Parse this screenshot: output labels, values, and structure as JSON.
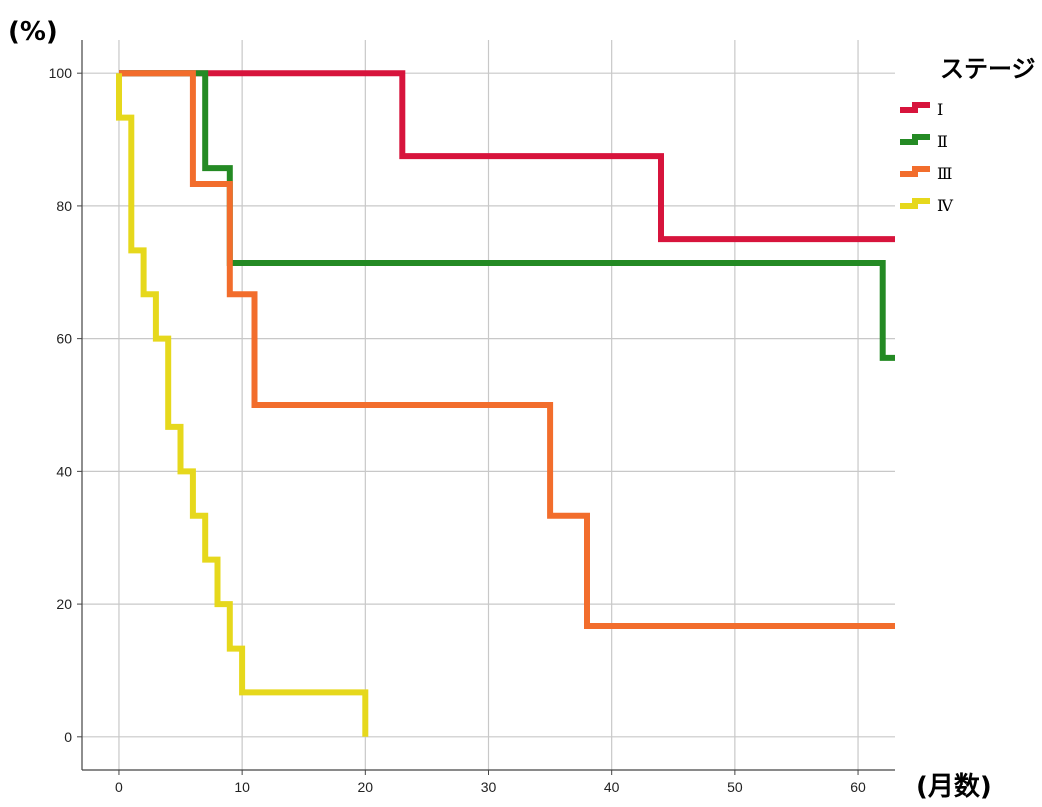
{
  "chart_data": {
    "type": "line",
    "step": true,
    "ylabel": "(%)",
    "xlabel": "(月数)",
    "xlim": [
      -3,
      63
    ],
    "ylim": [
      -5,
      105
    ],
    "x_ticks": [
      0,
      10,
      20,
      30,
      40,
      50,
      60
    ],
    "y_ticks": [
      0,
      20,
      40,
      60,
      80,
      100
    ],
    "grid": true,
    "legend": {
      "title": "ステージ",
      "position": "right"
    },
    "series": [
      {
        "name": "Ⅰ",
        "color": "#d7143c",
        "points": [
          [
            0,
            100
          ],
          [
            23,
            100
          ],
          [
            23,
            87.5
          ],
          [
            44,
            87.5
          ],
          [
            44,
            75
          ],
          [
            63,
            75
          ]
        ]
      },
      {
        "name": "Ⅱ",
        "color": "#248a24",
        "points": [
          [
            0,
            100
          ],
          [
            7,
            100
          ],
          [
            7,
            85.7
          ],
          [
            9,
            85.7
          ],
          [
            9,
            71.4
          ],
          [
            62,
            71.4
          ],
          [
            62,
            57.1
          ],
          [
            63,
            57.1
          ]
        ]
      },
      {
        "name": "Ⅲ",
        "color": "#f26d2c",
        "points": [
          [
            0,
            100
          ],
          [
            6,
            100
          ],
          [
            6,
            83.3
          ],
          [
            9,
            83.3
          ],
          [
            9,
            66.7
          ],
          [
            11,
            66.7
          ],
          [
            11,
            50
          ],
          [
            35,
            50
          ],
          [
            35,
            33.3
          ],
          [
            38,
            33.3
          ],
          [
            38,
            16.7
          ],
          [
            63,
            16.7
          ]
        ]
      },
      {
        "name": "Ⅳ",
        "color": "#e6d81c",
        "points": [
          [
            0,
            100
          ],
          [
            0,
            93.3
          ],
          [
            1,
            93.3
          ],
          [
            1,
            73.3
          ],
          [
            2,
            73.3
          ],
          [
            2,
            66.7
          ],
          [
            3,
            66.7
          ],
          [
            3,
            60
          ],
          [
            4,
            60
          ],
          [
            4,
            46.7
          ],
          [
            5,
            46.7
          ],
          [
            5,
            40
          ],
          [
            6,
            40
          ],
          [
            6,
            33.3
          ],
          [
            7,
            33.3
          ],
          [
            7,
            26.7
          ],
          [
            8,
            26.7
          ],
          [
            8,
            20
          ],
          [
            9,
            20
          ],
          [
            9,
            13.3
          ],
          [
            10,
            13.3
          ],
          [
            10,
            6.7
          ],
          [
            20,
            6.7
          ],
          [
            20,
            0
          ]
        ]
      }
    ]
  }
}
